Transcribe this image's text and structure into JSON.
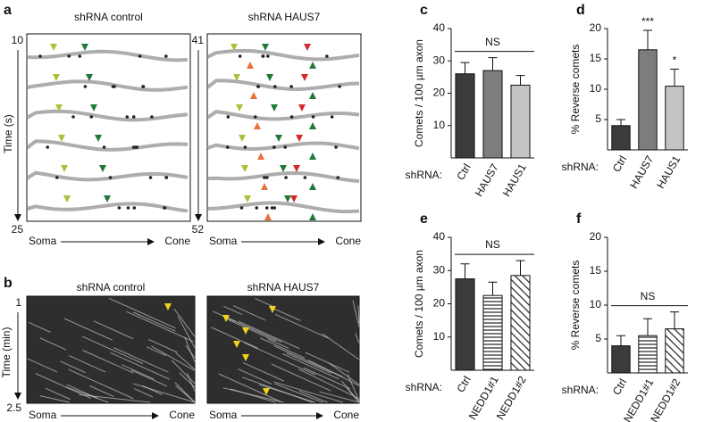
{
  "panels": {
    "a": {
      "label": "a",
      "time_axis": "Time (s)",
      "soma": "Soma",
      "cone": "Cone",
      "images": [
        {
          "title": "shRNA control",
          "time_start": "10",
          "time_end": "25"
        },
        {
          "title": "shRNA HAUS7",
          "time_start": "41",
          "time_end": "52"
        }
      ]
    },
    "b": {
      "label": "b",
      "time_axis": "Time (min)",
      "soma": "Soma",
      "cone": "Cone",
      "images": [
        {
          "title": "shRNA control",
          "time_start": "1",
          "time_end": "2.5"
        },
        {
          "title": "shRNA HAUS7"
        }
      ]
    }
  },
  "chart_data": [
    {
      "type": "bar",
      "panel": "c",
      "y_label": "Comets / 100 µm axon",
      "x_label": "shRNA:",
      "categories": [
        "Ctrl",
        "HAUS7",
        "HAUS1"
      ],
      "values": [
        26,
        27,
        22.5
      ],
      "errors": [
        3.5,
        4,
        3
      ],
      "colors": [
        "#3b3b3b",
        "#7d7d7d",
        "#c4c4c4"
      ],
      "hatches": [
        null,
        null,
        null
      ],
      "ylim": [
        0,
        40
      ],
      "yticks": [
        10,
        20,
        30,
        40
      ],
      "annotation": "NS",
      "significance": [
        null,
        null,
        null
      ]
    },
    {
      "type": "bar",
      "panel": "d",
      "y_label": "% Reverse comets",
      "x_label": "shRNA:",
      "categories": [
        "Ctrl",
        "HAUS7",
        "HAUS1"
      ],
      "values": [
        4,
        16.5,
        10.5
      ],
      "errors": [
        1,
        3.2,
        2.8
      ],
      "colors": [
        "#3b3b3b",
        "#7d7d7d",
        "#c4c4c4"
      ],
      "hatches": [
        null,
        null,
        null
      ],
      "ylim": [
        0,
        20
      ],
      "yticks": [
        5,
        10,
        15,
        20
      ],
      "significance": [
        null,
        "***",
        "*"
      ]
    },
    {
      "type": "bar",
      "panel": "e",
      "y_label": "Comets / 100 µm axon",
      "x_label": "shRNA:",
      "categories": [
        "Ctrl",
        "NEDD1#1",
        "NEDD1#2"
      ],
      "values": [
        27.5,
        22.5,
        28.5
      ],
      "errors": [
        4.5,
        4,
        4.5
      ],
      "colors": [
        "#3b3b3b",
        "#ffffff",
        "#ffffff"
      ],
      "hatches": [
        null,
        "horizontal",
        "diagonal"
      ],
      "ylim": [
        0,
        40
      ],
      "yticks": [
        10,
        20,
        30,
        40
      ],
      "annotation": "NS",
      "significance": [
        null,
        null,
        null
      ]
    },
    {
      "type": "bar",
      "panel": "f",
      "y_label": "% Reverse comets",
      "x_label": "shRNA:",
      "categories": [
        "Ctrl",
        "NEDD1#1",
        "NEDD1#2"
      ],
      "values": [
        4,
        5.5,
        6.5
      ],
      "errors": [
        1.5,
        2.5,
        2.5
      ],
      "colors": [
        "#3b3b3b",
        "#ffffff",
        "#ffffff"
      ],
      "hatches": [
        null,
        "horizontal",
        "diagonal"
      ],
      "ylim": [
        0,
        20
      ],
      "yticks": [
        5,
        10,
        15,
        20
      ],
      "annotation": "NS",
      "significance": [
        null,
        null,
        null
      ]
    }
  ]
}
